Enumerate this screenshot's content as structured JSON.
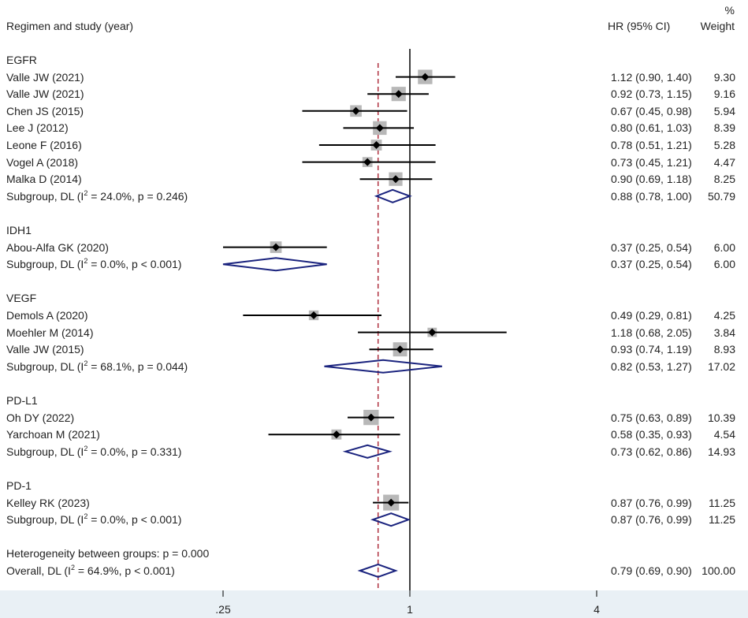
{
  "header": {
    "study_col": "Regimen and study (year)",
    "hr_col": "HR (95% CI)",
    "weight_col_pct": "%",
    "weight_col": "Weight"
  },
  "chart_data": {
    "type": "forest",
    "xscale": "log",
    "x_ticks": [
      ".25",
      "1",
      "4"
    ],
    "x_tick_values": [
      0.25,
      1,
      4
    ],
    "null_line": 1,
    "overall_line": 0.79,
    "groups": [
      {
        "name": "EGFR",
        "studies": [
          {
            "study": "Valle JW (2021)",
            "hr": 1.12,
            "lo": 0.9,
            "hi": 1.4,
            "ci_text": "1.12 (0.90, 1.40)",
            "weight": "9.30"
          },
          {
            "study": "Valle JW (2021)",
            "hr": 0.92,
            "lo": 0.73,
            "hi": 1.15,
            "ci_text": "0.92 (0.73, 1.15)",
            "weight": "9.16"
          },
          {
            "study": "Chen JS (2015)",
            "hr": 0.67,
            "lo": 0.45,
            "hi": 0.98,
            "ci_text": "0.67 (0.45, 0.98)",
            "weight": "5.94"
          },
          {
            "study": "Lee J (2012)",
            "hr": 0.8,
            "lo": 0.61,
            "hi": 1.03,
            "ci_text": "0.80 (0.61, 1.03)",
            "weight": "8.39"
          },
          {
            "study": "Leone F (2016)",
            "hr": 0.78,
            "lo": 0.51,
            "hi": 1.21,
            "ci_text": "0.78 (0.51, 1.21)",
            "weight": "5.28"
          },
          {
            "study": "Vogel A (2018)",
            "hr": 0.73,
            "lo": 0.45,
            "hi": 1.21,
            "ci_text": "0.73 (0.45, 1.21)",
            "weight": "4.47"
          },
          {
            "study": "Malka D (2014)",
            "hr": 0.9,
            "lo": 0.69,
            "hi": 1.18,
            "ci_text": "0.90 (0.69, 1.18)",
            "weight": "8.25"
          }
        ],
        "subgroup": {
          "label_pre": "Subgroup, DL (I",
          "label_post": " = 24.0%, p = 0.246)",
          "hr": 0.88,
          "lo": 0.78,
          "hi": 1.0,
          "ci_text": "0.88 (0.78, 1.00)",
          "weight": "50.79"
        }
      },
      {
        "name": "IDH1",
        "studies": [
          {
            "study": "Abou-Alfa GK (2020)",
            "hr": 0.37,
            "lo": 0.25,
            "hi": 0.54,
            "ci_text": "0.37 (0.25, 0.54)",
            "weight": "6.00"
          }
        ],
        "subgroup": {
          "label_pre": "Subgroup, DL (I",
          "label_post": " = 0.0%, p < 0.001)",
          "hr": 0.37,
          "lo": 0.25,
          "hi": 0.54,
          "ci_text": "0.37 (0.25, 0.54)",
          "weight": "6.00"
        }
      },
      {
        "name": "VEGF",
        "studies": [
          {
            "study": "Demols A (2020)",
            "hr": 0.49,
            "lo": 0.29,
            "hi": 0.81,
            "ci_text": "0.49 (0.29, 0.81)",
            "weight": "4.25"
          },
          {
            "study": "Moehler M (2014)",
            "hr": 1.18,
            "lo": 0.68,
            "hi": 2.05,
            "ci_text": "1.18 (0.68, 2.05)",
            "weight": "3.84"
          },
          {
            "study": "Valle JW (2015)",
            "hr": 0.93,
            "lo": 0.74,
            "hi": 1.19,
            "ci_text": "0.93 (0.74, 1.19)",
            "weight": "8.93"
          }
        ],
        "subgroup": {
          "label_pre": "Subgroup, DL (I",
          "label_post": " = 68.1%, p = 0.044)",
          "hr": 0.82,
          "lo": 0.53,
          "hi": 1.27,
          "ci_text": "0.82 (0.53, 1.27)",
          "weight": "17.02"
        }
      },
      {
        "name": "PD-L1",
        "studies": [
          {
            "study": "Oh DY (2022)",
            "hr": 0.75,
            "lo": 0.63,
            "hi": 0.89,
            "ci_text": "0.75 (0.63, 0.89)",
            "weight": "10.39"
          },
          {
            "study": "Yarchoan M (2021)",
            "hr": 0.58,
            "lo": 0.35,
            "hi": 0.93,
            "ci_text": "0.58 (0.35, 0.93)",
            "weight": "4.54"
          }
        ],
        "subgroup": {
          "label_pre": "Subgroup, DL (I",
          "label_post": " = 0.0%, p = 0.331)",
          "hr": 0.73,
          "lo": 0.62,
          "hi": 0.86,
          "ci_text": "0.73 (0.62, 0.86)",
          "weight": "14.93"
        }
      },
      {
        "name": "PD-1",
        "studies": [
          {
            "study": "Kelley RK (2023)",
            "hr": 0.87,
            "lo": 0.76,
            "hi": 0.99,
            "ci_text": "0.87 (0.76, 0.99)",
            "weight": "11.25"
          }
        ],
        "subgroup": {
          "label_pre": "Subgroup, DL (I",
          "label_post": " = 0.0%, p < 0.001)",
          "hr": 0.87,
          "lo": 0.76,
          "hi": 0.99,
          "ci_text": "0.87 (0.76, 0.99)",
          "weight": "11.25"
        }
      }
    ],
    "heterogeneity_text": "Heterogeneity between groups: p = 0.000",
    "overall": {
      "label_pre": "Overall, DL (I",
      "label_post": " = 64.9%, p < 0.001)",
      "hr": 0.79,
      "lo": 0.69,
      "hi": 0.9,
      "ci_text": "0.79 (0.69, 0.90)",
      "weight": "100.00"
    },
    "i2_sup": "2",
    "colors": {
      "diamond": "#1a237e",
      "box": "#b8b8b8",
      "ref_line": "#b03040",
      "line": "#000000"
    }
  }
}
